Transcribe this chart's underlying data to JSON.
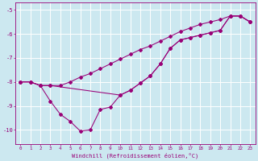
{
  "xlabel": "Windchill (Refroidissement éolien,°C)",
  "bg_color": "#cce8f0",
  "line_color": "#990077",
  "grid_color": "#ffffff",
  "xlim": [
    -0.5,
    23.5
  ],
  "ylim": [
    -10.6,
    -4.7
  ],
  "yticks": [
    -10,
    -9,
    -8,
    -7,
    -6,
    -5
  ],
  "xticks": [
    0,
    1,
    2,
    3,
    4,
    5,
    6,
    7,
    8,
    9,
    10,
    11,
    12,
    13,
    14,
    15,
    16,
    17,
    18,
    19,
    20,
    21,
    22,
    23
  ],
  "line1_x": [
    0,
    1,
    2,
    3,
    4,
    5,
    6,
    7,
    8,
    9,
    10,
    11,
    12,
    13,
    14,
    15,
    16,
    17,
    18,
    19,
    20,
    21,
    22,
    23
  ],
  "line1_y": [
    -8.0,
    -8.0,
    -8.15,
    -8.8,
    -9.35,
    -9.65,
    -10.05,
    -10.0,
    -9.15,
    -9.05,
    -8.55,
    -8.35,
    -8.05,
    -7.75,
    -7.25,
    -6.6,
    -6.25,
    -6.15,
    -6.05,
    -5.95,
    -5.85,
    -5.25,
    -5.25,
    -5.5
  ],
  "line2_x": [
    0,
    1,
    2,
    3,
    4,
    5,
    6,
    7,
    8,
    9,
    10,
    11,
    12,
    13,
    14,
    15,
    16,
    17,
    18,
    19,
    20,
    21,
    22,
    23
  ],
  "line2_y": [
    -8.0,
    -8.0,
    -8.15,
    -8.15,
    -8.15,
    -8.0,
    -7.8,
    -7.65,
    -7.45,
    -7.25,
    -7.05,
    -6.85,
    -6.65,
    -6.5,
    -6.3,
    -6.1,
    -5.9,
    -5.75,
    -5.6,
    -5.5,
    -5.4,
    -5.25,
    -5.25,
    -5.5
  ],
  "line3_x": [
    0,
    1,
    2,
    3,
    10,
    11,
    12,
    13,
    14,
    15,
    16,
    17,
    18,
    19,
    20,
    21,
    22,
    23
  ],
  "line3_y": [
    -8.0,
    -8.0,
    -8.15,
    -8.15,
    -8.55,
    -8.35,
    -8.05,
    -7.75,
    -7.25,
    -6.6,
    -6.25,
    -6.15,
    -6.05,
    -5.95,
    -5.85,
    -5.25,
    -5.25,
    -5.5
  ]
}
